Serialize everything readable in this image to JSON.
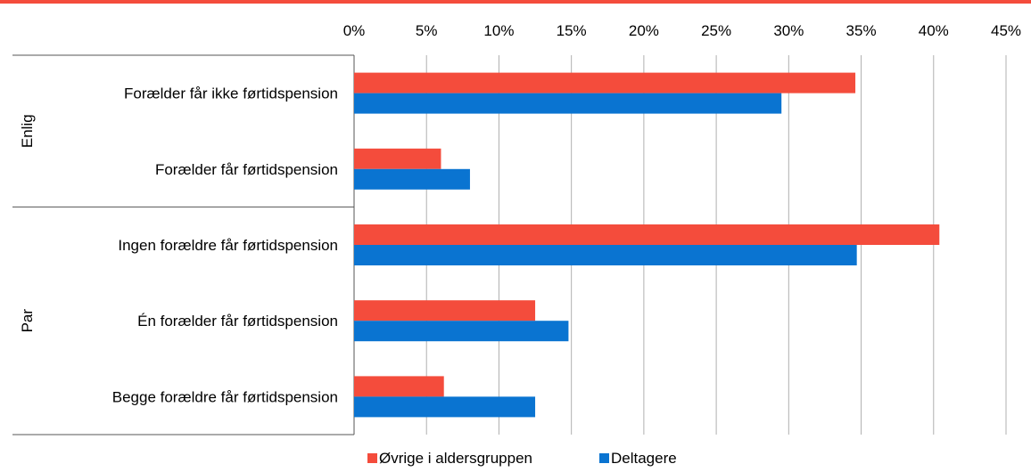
{
  "chart_data": {
    "type": "bar",
    "orientation": "horizontal",
    "x_ticks": [
      "0%",
      "5%",
      "10%",
      "15%",
      "20%",
      "25%",
      "30%",
      "35%",
      "40%",
      "45%"
    ],
    "xlim": [
      0,
      45
    ],
    "grid": true,
    "legend_position": "bottom",
    "groups": [
      {
        "label": "Enlig",
        "categories": [
          "Forælder får ikke førtidspension",
          "Forælder får førtidspension"
        ]
      },
      {
        "label": "Par",
        "categories": [
          "Ingen forældre får førtidspension",
          "Én forælder får førtidspension",
          "Begge forældre får førtidspension"
        ]
      }
    ],
    "categories": [
      "Forælder får ikke førtidspension",
      "Forælder får førtidspension",
      "Ingen forældre får førtidspension",
      "Én forælder får førtidspension",
      "Begge forældre får førtidspension"
    ],
    "series": [
      {
        "name": "Øvrige i aldersgruppen",
        "color": "#f44c3c",
        "values": [
          34.6,
          6.0,
          40.4,
          12.5,
          6.2
        ]
      },
      {
        "name": "Deltagere",
        "color": "#0a74d1",
        "values": [
          29.5,
          8.0,
          34.7,
          14.8,
          12.5
        ]
      }
    ]
  },
  "colors": {
    "top_rule": "#f44c3c",
    "grid": "#b0b0b0",
    "axis": "#555555"
  }
}
